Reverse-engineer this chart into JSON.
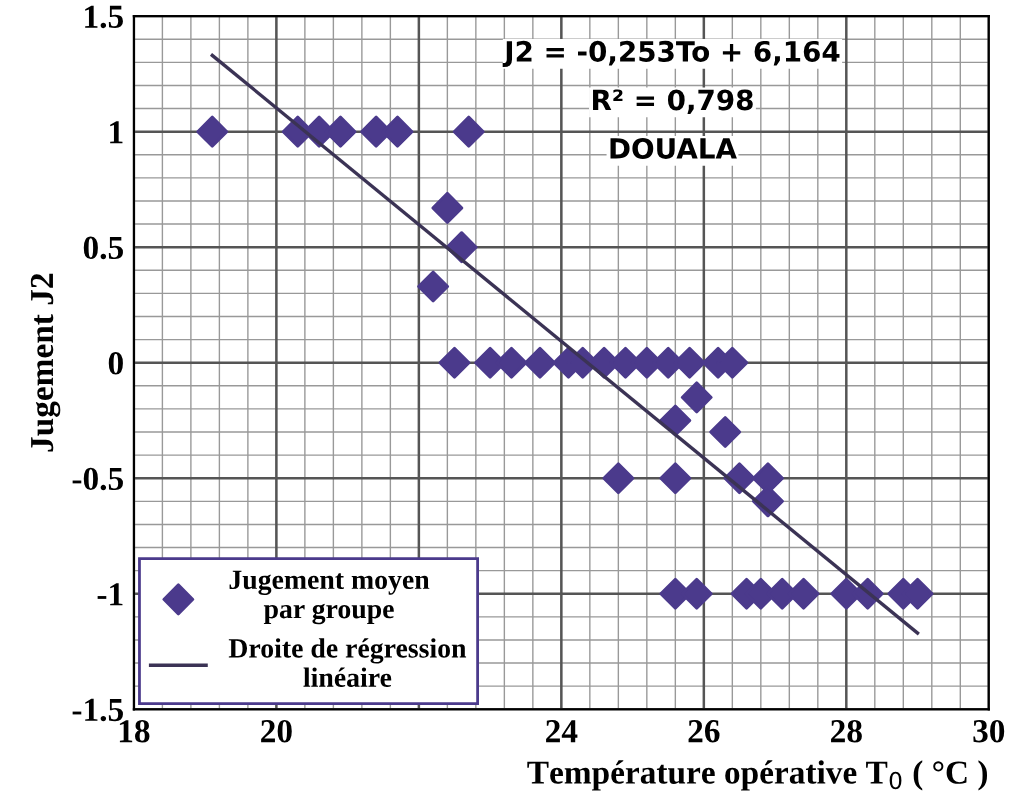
{
  "chart_data": {
    "type": "scatter",
    "xlabel": "Température opérative T$_{0}$ ( °C )",
    "ylabel": "Jugement J2",
    "annotations": [
      "J2 = -0,253To + 6,164",
      "R² = 0,798",
      "DOUALA"
    ],
    "xlim": [
      18,
      30
    ],
    "xticks": [
      18,
      20,
      {
        "value": 22,
        "label": null
      },
      24,
      26,
      28,
      30
    ],
    "ylim": [
      -1.5,
      1.5
    ],
    "yticks": [
      -1.5,
      -1,
      -0.5,
      0,
      0.5,
      1,
      1.5
    ],
    "grid": true,
    "legend": "bottom left",
    "marker": "diamond",
    "series": [
      {
        "name": "Jugement moyen par groupe",
        "color": "#4b3a8c",
        "x": [
          19.1,
          20.3,
          20.6,
          20.9,
          21.4,
          21.7,
          22.7,
          22.4,
          22.6,
          22.2,
          22.5,
          23.0,
          23.3,
          23.7,
          24.1,
          24.3,
          24.6,
          24.9,
          25.2,
          25.5,
          25.8,
          26.2,
          26.4,
          25.9,
          25.6,
          26.3,
          24.8,
          25.6,
          26.5,
          26.9,
          26.9,
          25.6,
          25.9,
          26.6,
          26.8,
          27.1,
          27.4,
          28.0,
          28.3,
          28.8,
          29.0
        ],
        "values": [
          1,
          1,
          1,
          1,
          1,
          1,
          1,
          0.67,
          0.5,
          0.33,
          0,
          0,
          0,
          0,
          0,
          0,
          0,
          0,
          0,
          0,
          0,
          0,
          0,
          -0.15,
          -0.25,
          -0.3,
          -0.5,
          -0.5,
          -0.5,
          -0.5,
          -0.6,
          -1,
          -1,
          -1,
          -1,
          -1,
          -1,
          -1,
          -1,
          -1,
          -1
        ]
      },
      {
        "name": "Droite de régression linéaire",
        "color": "#3b3355",
        "type": "line",
        "marker": "none",
        "line_style": "solid",
        "x": [
          19.1,
          29.0
        ],
        "values": [
          1.33,
          -1.17
        ]
      }
    ]
  }
}
